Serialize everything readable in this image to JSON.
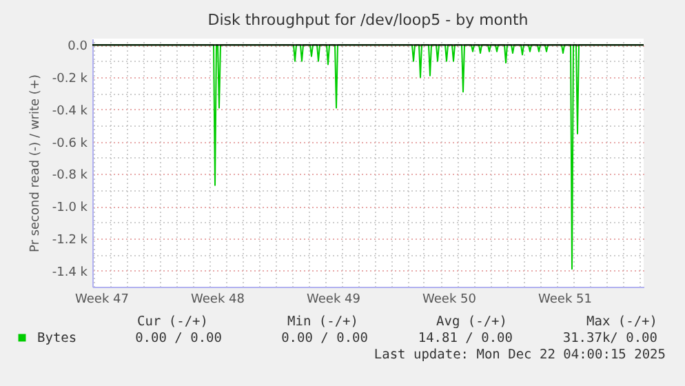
{
  "chart_data": {
    "type": "line",
    "title": "Disk throughput for /dev/loop5 - by month",
    "ylabel": "Pr second read (-) / write (+)",
    "x": [
      "2025-11-19T23:00",
      "2025-11-27T07:00",
      "2025-11-27T09:00",
      "2025-11-27T11:00",
      "2025-11-27T13:00",
      "2025-11-27T15:00",
      "2025-11-27T17:00",
      "2025-12-02T03:00",
      "2025-12-02T05:00",
      "2025-12-02T07:00",
      "2025-12-02T13:00",
      "2025-12-02T15:00",
      "2025-12-02T17:00",
      "2025-12-03T03:00",
      "2025-12-03T05:00",
      "2025-12-03T07:00",
      "2025-12-03T13:00",
      "2025-12-03T15:00",
      "2025-12-03T17:00",
      "2025-12-04T03:00",
      "2025-12-04T05:00",
      "2025-12-04T07:00",
      "2025-12-04T15:00",
      "2025-12-04T17:00",
      "2025-12-04T19:00",
      "2025-12-09T07:00",
      "2025-12-09T09:00",
      "2025-12-09T11:00",
      "2025-12-09T17:00",
      "2025-12-09T19:00",
      "2025-12-09T21:00",
      "2025-12-10T07:00",
      "2025-12-10T09:00",
      "2025-12-10T11:00",
      "2025-12-10T18:00",
      "2025-12-10T20:00",
      "2025-12-10T22:00",
      "2025-12-11T07:00",
      "2025-12-11T09:00",
      "2025-12-11T11:00",
      "2025-12-11T17:00",
      "2025-12-11T19:00",
      "2025-12-11T21:00",
      "2025-12-12T07:00",
      "2025-12-12T09:00",
      "2025-12-12T11:00",
      "2025-12-12T21:00",
      "2025-12-12T23:00",
      "2025-12-13T01:00",
      "2025-12-13T08:00",
      "2025-12-13T10:00",
      "2025-12-13T12:00",
      "2025-12-13T21:00",
      "2025-12-13T23:00",
      "2025-12-14T01:00",
      "2025-12-14T08:00",
      "2025-12-14T10:00",
      "2025-12-14T12:00",
      "2025-12-14T21:00",
      "2025-12-14T23:00",
      "2025-12-15T01:00",
      "2025-12-15T07:00",
      "2025-12-15T09:00",
      "2025-12-15T11:00",
      "2025-12-15T21:00",
      "2025-12-15T23:00",
      "2025-12-16T01:00",
      "2025-12-16T08:00",
      "2025-12-16T10:00",
      "2025-12-16T12:00",
      "2025-12-16T21:00",
      "2025-12-16T23:00",
      "2025-12-17T01:00",
      "2025-12-17T08:00",
      "2025-12-17T10:00",
      "2025-12-17T12:00",
      "2025-12-18T08:00",
      "2025-12-18T10:00",
      "2025-12-18T12:00",
      "2025-12-18T21:00",
      "2025-12-18T23:00",
      "2025-12-19T01:00",
      "2025-12-19T05:00",
      "2025-12-19T07:00",
      "2025-12-19T09:00",
      "2025-12-23T07:00"
    ],
    "series": [
      {
        "name": "Bytes",
        "color": "#00cc00",
        "values": [
          0,
          0,
          -870,
          0,
          0,
          -390,
          0,
          0,
          -100,
          0,
          0,
          -100,
          0,
          0,
          -70,
          0,
          0,
          -100,
          0,
          0,
          -120,
          0,
          0,
          -390,
          0,
          0,
          -100,
          0,
          0,
          -200,
          0,
          0,
          -190,
          0,
          0,
          -100,
          0,
          0,
          -100,
          0,
          0,
          -100,
          0,
          0,
          -290,
          0,
          0,
          -40,
          0,
          0,
          -50,
          0,
          0,
          -40,
          0,
          0,
          -40,
          0,
          0,
          -110,
          0,
          0,
          -50,
          0,
          0,
          -60,
          0,
          0,
          -40,
          0,
          0,
          -40,
          0,
          0,
          -40,
          0,
          0,
          -50,
          0,
          0,
          -1390,
          0,
          0,
          -550,
          0,
          0
        ]
      }
    ],
    "xlim": [
      "2025-11-19T23:00",
      "2025-12-23T07:00"
    ],
    "xticks": [
      {
        "value": "2025-11-20T12:00",
        "label": "Week 47"
      },
      {
        "value": "2025-11-27T12:00",
        "label": "Week 48"
      },
      {
        "value": "2025-12-04T12:00",
        "label": "Week 49"
      },
      {
        "value": "2025-12-11T12:00",
        "label": "Week 50"
      },
      {
        "value": "2025-12-18T12:00",
        "label": "Week 51"
      },
      {
        "value": "2025-11-20",
        "label": null
      },
      {
        "value": "2025-11-21",
        "label": null
      },
      {
        "value": "2025-11-22",
        "label": null
      },
      {
        "value": "2025-11-23",
        "label": null
      },
      {
        "value": "2025-11-24",
        "label": null
      },
      {
        "value": "2025-11-25",
        "label": null
      },
      {
        "value": "2025-11-26",
        "label": null
      },
      {
        "value": "2025-11-27",
        "label": null
      },
      {
        "value": "2025-11-28",
        "label": null
      },
      {
        "value": "2025-11-29",
        "label": null
      },
      {
        "value": "2025-11-30",
        "label": null
      },
      {
        "value": "2025-12-01",
        "label": null
      },
      {
        "value": "2025-12-02",
        "label": null
      },
      {
        "value": "2025-12-03",
        "label": null
      },
      {
        "value": "2025-12-04",
        "label": null
      },
      {
        "value": "2025-12-05",
        "label": null
      },
      {
        "value": "2025-12-06",
        "label": null
      },
      {
        "value": "2025-12-07",
        "label": null
      },
      {
        "value": "2025-12-08",
        "label": null
      },
      {
        "value": "2025-12-09",
        "label": null
      },
      {
        "value": "2025-12-10",
        "label": null
      },
      {
        "value": "2025-12-11",
        "label": null
      },
      {
        "value": "2025-12-12",
        "label": null
      },
      {
        "value": "2025-12-13",
        "label": null
      },
      {
        "value": "2025-12-14",
        "label": null
      },
      {
        "value": "2025-12-15",
        "label": null
      },
      {
        "value": "2025-12-16",
        "label": null
      },
      {
        "value": "2025-12-17",
        "label": null
      },
      {
        "value": "2025-12-18",
        "label": null
      },
      {
        "value": "2025-12-19",
        "label": null
      },
      {
        "value": "2025-12-20",
        "label": null
      },
      {
        "value": "2025-12-21",
        "label": null
      },
      {
        "value": "2025-12-22",
        "label": null
      },
      {
        "value": "2025-12-23",
        "label": null
      }
    ],
    "ylim": [
      -1500,
      40
    ],
    "yticks": [
      {
        "value": 0,
        "label": "0.0"
      },
      {
        "value": -200,
        "label": "-0.2 k"
      },
      {
        "value": -400,
        "label": "-0.4 k"
      },
      {
        "value": -600,
        "label": "-0.6 k"
      },
      {
        "value": -800,
        "label": "-0.8 k"
      },
      {
        "value": -1000,
        "label": "-1.0 k"
      },
      {
        "value": -1200,
        "label": "-1.2 k"
      },
      {
        "value": -1400,
        "label": "-1.4 k"
      },
      {
        "value": -100,
        "label": null
      },
      {
        "value": -300,
        "label": null
      },
      {
        "value": -500,
        "label": null
      },
      {
        "value": -700,
        "label": null
      },
      {
        "value": -900,
        "label": null
      },
      {
        "value": -1100,
        "label": null
      },
      {
        "value": -1300,
        "label": null
      }
    ],
    "ref_lines": [
      {
        "axis": "y",
        "value": 0,
        "color": "#000000"
      }
    ],
    "grid": true,
    "legend": "bottom left",
    "marker": "none",
    "line_style": "solid",
    "annotations": [
      "Cur (-/+)",
      "Min (-/+)",
      "Avg (-/+)",
      "Max (-/+)",
      "0.00 /  0.00",
      "0.00 /  0.00",
      "14.81 /  0.00",
      "31.37k/  0.00",
      "Last update: Mon Dec 22 04:00:15 2025"
    ]
  }
}
